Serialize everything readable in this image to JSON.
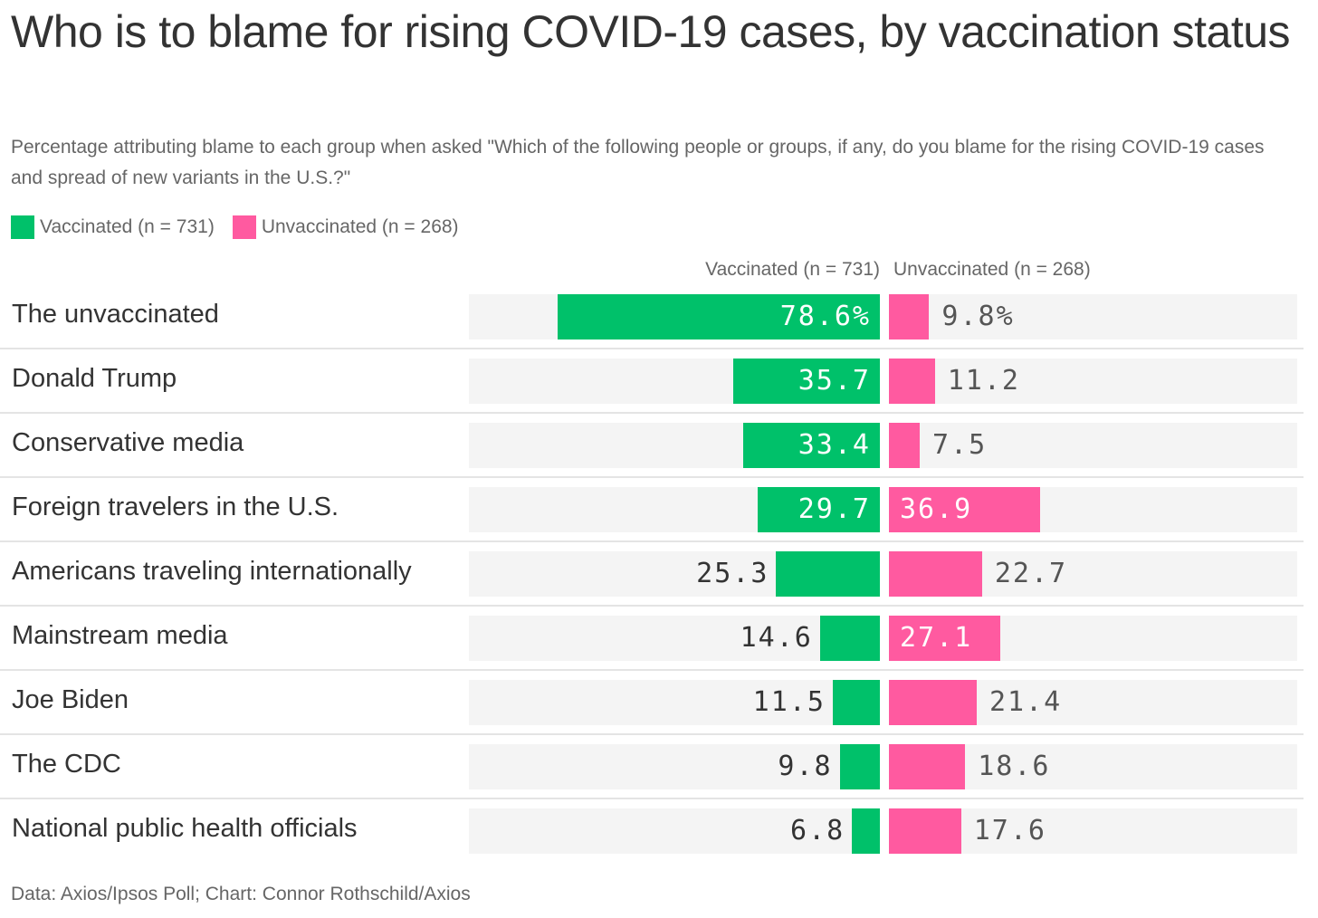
{
  "title": "Who is to blame for rising COVID-19 cases, by vaccination status",
  "subtitle": "Percentage attributing blame to each group when asked \"Which of the following people or groups, if any, do you blame for the rising COVID-19 cases and spread of new variants in the U.S.?\"",
  "legend": [
    {
      "label": "Vaccinated (n = 731)",
      "color": "#00c16a"
    },
    {
      "label": "Unvaccinated (n = 268)",
      "color": "#ff5aa0"
    }
  ],
  "source": "Data: Axios/Ipsos Poll; Chart: Connor Rothschild/Axios",
  "chart_data": {
    "type": "bar",
    "orientation": "horizontal-diverging",
    "title": "Who is to blame for rising COVID-19 cases, by vaccination status",
    "categories": [
      "The unvaccinated",
      "Donald Trump",
      "Conservative media",
      "Foreign travelers in the U.S.",
      "Americans traveling internationally",
      "Mainstream media",
      "Joe Biden",
      "The CDC",
      "National public health officials"
    ],
    "series": [
      {
        "name": "Vaccinated (n = 731)",
        "color": "#00c16a",
        "values": [
          78.6,
          35.7,
          33.4,
          29.7,
          25.3,
          14.6,
          11.5,
          9.8,
          6.8
        ],
        "labels": [
          "78.6%",
          "35.7",
          "33.4",
          "29.7",
          "25.3",
          "14.6",
          "11.5",
          "9.8",
          "6.8"
        ]
      },
      {
        "name": "Unvaccinated (n = 268)",
        "color": "#ff5aa0",
        "values": [
          9.8,
          11.2,
          7.5,
          36.9,
          22.7,
          27.1,
          21.4,
          18.6,
          17.6
        ],
        "labels": [
          "9.8%",
          "11.2",
          "7.5",
          "36.9",
          "22.7",
          "27.1",
          "21.4",
          "18.6",
          "17.6"
        ]
      }
    ],
    "xlim": [
      0,
      100
    ],
    "unit": "%",
    "grid": false,
    "legend_position": "top-left"
  }
}
